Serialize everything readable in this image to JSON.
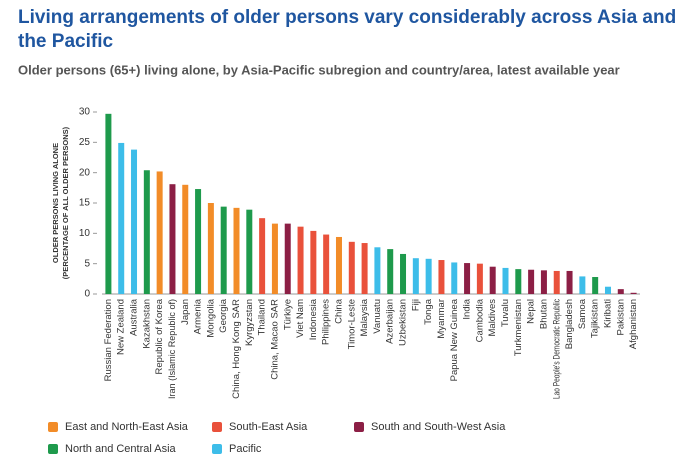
{
  "chart_data": {
    "type": "bar",
    "title": [
      "Living arrangements of older persons vary considerably across Asia and",
      "the Pacific"
    ],
    "subtitle": "Older persons (65+) living alone, by Asia-Pacific subregion and country/area, latest available year",
    "y_label": [
      "OLDER PERSONS LIVING ALONE",
      "(PERCENTAGE OF ALL OLDER PERSONS)"
    ],
    "categories": [
      "Russian Federation",
      "New Zealand",
      "Australia",
      "Kazakhstan",
      "Republic of Korea",
      "Iran (Islamic Republic of)",
      "Japan",
      "Armenia",
      "Mongolia",
      "Georgia",
      "China, Hong Kong SAR",
      "Kyrgyzstan",
      "Thailand",
      "China, Macao SAR",
      "Türkiye",
      "Viet Nam",
      "Indonesia",
      "Philippines",
      "China",
      "Timor-Leste",
      "Malaysia",
      "Vanuatu",
      "Azerbaijan",
      "Uzbekistan",
      "Fiji",
      "Tonga",
      "Myanmar",
      "Papua New Guinea",
      "India",
      "Cambodia",
      "Maldives",
      "Tuvalu",
      "Turkmenistan",
      "Nepal",
      "Bhutan",
      "Lao People's Democratic Republic",
      "Bangladesh",
      "Samoa",
      "Tajikistan",
      "Kiribati",
      "Pakistan",
      "Afghanistan"
    ],
    "series": [
      {
        "name": "East and North-East Asia",
        "color": "#f28c28",
        "values": [
          null,
          null,
          null,
          null,
          20.2,
          null,
          18.0,
          null,
          15.0,
          null,
          14.2,
          null,
          null,
          11.6,
          null,
          null,
          null,
          null,
          9.4,
          null,
          null,
          null,
          null,
          null,
          null,
          null,
          null,
          null,
          null,
          null,
          null,
          null,
          null,
          null,
          null,
          null,
          null,
          null,
          null,
          null,
          null,
          null
        ]
      },
      {
        "name": "South-East Asia",
        "color": "#e9513b",
        "values": [
          null,
          null,
          null,
          null,
          null,
          null,
          null,
          null,
          null,
          null,
          null,
          null,
          12.5,
          null,
          null,
          11.1,
          10.4,
          9.8,
          null,
          8.6,
          8.4,
          null,
          null,
          null,
          null,
          null,
          5.6,
          null,
          null,
          5.0,
          null,
          null,
          null,
          null,
          null,
          3.8,
          null,
          null,
          null,
          null,
          null,
          null
        ]
      },
      {
        "name": "South and South-West Asia",
        "color": "#8c1f45",
        "values": [
          null,
          null,
          null,
          null,
          null,
          18.1,
          null,
          null,
          null,
          null,
          null,
          null,
          null,
          null,
          11.6,
          null,
          null,
          null,
          null,
          null,
          null,
          null,
          null,
          null,
          null,
          null,
          null,
          null,
          5.1,
          null,
          4.5,
          null,
          null,
          4.0,
          3.9,
          null,
          3.8,
          null,
          null,
          null,
          0.8,
          0.2
        ]
      },
      {
        "name": "North and Central Asia",
        "color": "#1e9a4c",
        "values": [
          29.7,
          null,
          null,
          20.4,
          null,
          null,
          null,
          17.3,
          null,
          14.4,
          null,
          13.9,
          null,
          null,
          null,
          null,
          null,
          null,
          null,
          null,
          null,
          null,
          7.4,
          6.6,
          null,
          null,
          null,
          null,
          null,
          null,
          null,
          null,
          4.1,
          null,
          null,
          null,
          null,
          null,
          2.8,
          null,
          null,
          null
        ]
      },
      {
        "name": "Pacific",
        "color": "#3dbde9",
        "values": [
          null,
          24.9,
          23.8,
          null,
          null,
          null,
          null,
          null,
          null,
          null,
          null,
          null,
          null,
          null,
          null,
          null,
          null,
          null,
          null,
          null,
          null,
          7.7,
          null,
          null,
          5.9,
          5.8,
          null,
          5.2,
          null,
          null,
          null,
          4.3,
          null,
          null,
          null,
          null,
          null,
          2.9,
          null,
          1.2,
          null,
          null
        ]
      }
    ],
    "ylim": [
      0,
      30
    ],
    "yticks": [
      0,
      5,
      10,
      15,
      20,
      25,
      30
    ]
  }
}
